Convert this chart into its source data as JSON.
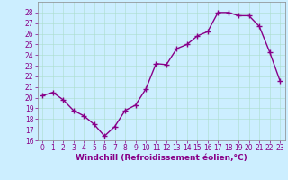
{
  "x": [
    0,
    1,
    2,
    3,
    4,
    5,
    6,
    7,
    8,
    9,
    10,
    11,
    12,
    13,
    14,
    15,
    16,
    17,
    18,
    19,
    20,
    21,
    22,
    23
  ],
  "y": [
    20.2,
    20.5,
    19.8,
    18.8,
    18.3,
    17.5,
    16.4,
    17.3,
    18.8,
    19.3,
    20.8,
    23.2,
    23.1,
    24.6,
    25.0,
    25.8,
    26.2,
    28.0,
    28.0,
    27.7,
    27.7,
    26.7,
    24.3,
    21.6
  ],
  "line_color": "#880088",
  "marker": "+",
  "marker_size": 4,
  "marker_lw": 1.0,
  "line_width": 1.0,
  "bg_color": "#cceeff",
  "grid_color": "#aaddcc",
  "xlabel": "Windchill (Refroidissement éolien,°C)",
  "ylim": [
    16,
    29
  ],
  "xlim": [
    -0.5,
    23.5
  ],
  "yticks": [
    16,
    17,
    18,
    19,
    20,
    21,
    22,
    23,
    24,
    25,
    26,
    27,
    28
  ],
  "xticks": [
    0,
    1,
    2,
    3,
    4,
    5,
    6,
    7,
    8,
    9,
    10,
    11,
    12,
    13,
    14,
    15,
    16,
    17,
    18,
    19,
    20,
    21,
    22,
    23
  ],
  "tick_fontsize": 5.5,
  "xlabel_fontsize": 6.5,
  "label_color": "#880088",
  "spine_color": "#888888"
}
